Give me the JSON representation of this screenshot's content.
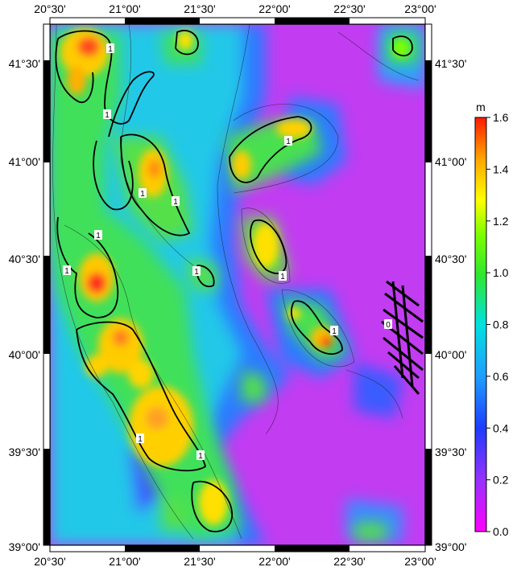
{
  "map": {
    "lon_ticks": [
      "20°30'",
      "21°00'",
      "21°30'",
      "22°00'",
      "22°30'",
      "23°00'"
    ],
    "lat_ticks": [
      "41°30'",
      "41°00'",
      "40°30'",
      "40°00'",
      "39°30'",
      "39°00'"
    ],
    "contour_labels": [
      "1",
      "1",
      "1",
      "1",
      "1",
      "1",
      "1",
      "1",
      "1",
      "1",
      "1",
      "1",
      "0"
    ]
  },
  "colorbar": {
    "unit": "m",
    "ticks": [
      "1.6",
      "1.4",
      "1.2",
      "1.0",
      "0.8",
      "0.6",
      "0.4",
      "0.2",
      "0.0"
    ],
    "colors": [
      "#ff00ff",
      "#8a2be2",
      "#1e3cff",
      "#1e9bff",
      "#00e5e5",
      "#2ee82e",
      "#7fff00",
      "#ffff00",
      "#ffa500",
      "#ff0000"
    ]
  },
  "colors": {
    "background_low": "#c838f0",
    "frame": "#000000"
  }
}
